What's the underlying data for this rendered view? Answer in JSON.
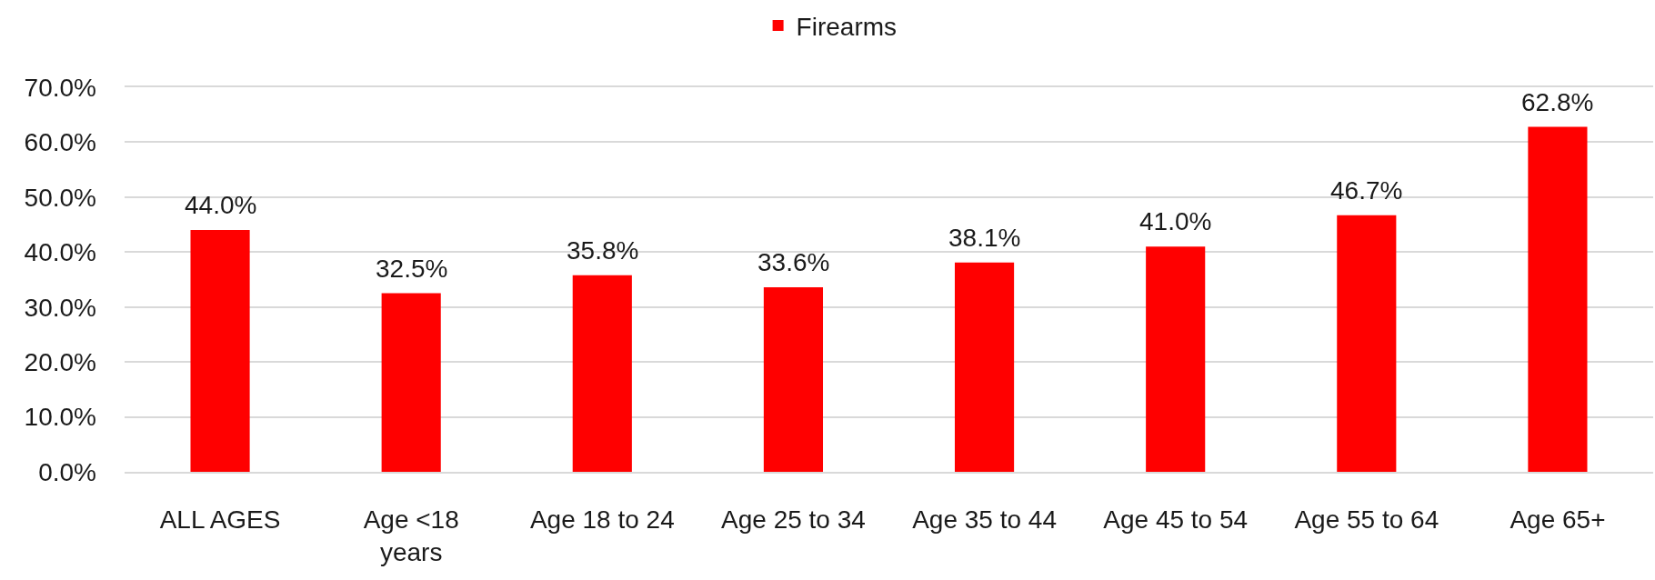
{
  "chart_data": {
    "type": "bar",
    "categories": [
      "ALL AGES",
      "Age <18\nyears",
      "Age 18 to 24",
      "Age 25 to 34",
      "Age 35 to 44",
      "Age 45 to 54",
      "Age 55 to 64",
      "Age 65+"
    ],
    "series": [
      {
        "name": "Firearms",
        "color": "#ff0000",
        "values": [
          44.0,
          32.5,
          35.8,
          33.6,
          38.1,
          41.0,
          46.7,
          62.8
        ],
        "value_labels": [
          "44.0%",
          "32.5%",
          "35.8%",
          "33.6%",
          "38.1%",
          "41.0%",
          "46.7%",
          "62.8%"
        ]
      }
    ],
    "ylim": [
      0,
      70
    ],
    "yticks": [
      {
        "value": 0,
        "label": "0.0%"
      },
      {
        "value": 10,
        "label": "10.0%"
      },
      {
        "value": 20,
        "label": "20.0%"
      },
      {
        "value": 30,
        "label": "30.0%"
      },
      {
        "value": 40,
        "label": "40.0%"
      },
      {
        "value": 50,
        "label": "50.0%"
      },
      {
        "value": 60,
        "label": "60.0%"
      },
      {
        "value": 70,
        "label": "70.0%"
      }
    ],
    "grid": "y",
    "legend": "top"
  }
}
